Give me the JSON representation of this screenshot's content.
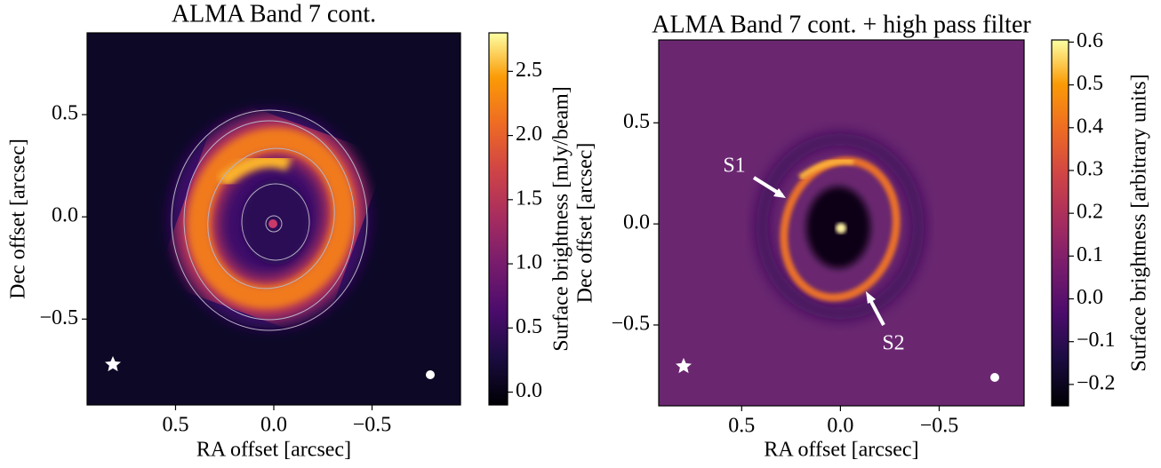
{
  "chart_data": [
    {
      "type": "image",
      "title": "ALMA Band 7 cont.",
      "xlabel": "RA offset [arcsec]",
      "ylabel": "Dec offset [arcsec]",
      "xlim": [
        0.95,
        -0.95
      ],
      "ylim": [
        -0.92,
        0.9
      ],
      "xticks": [
        0.5,
        {
          "value": 0,
          "label": "0.0"
        },
        {
          "value": -0.5,
          "label": "−0.5"
        }
      ],
      "yticks": [
        {
          "value": -0.5,
          "label": "−0.5"
        },
        {
          "value": 0,
          "label": "0.0"
        },
        0.5
      ],
      "colormap": "inferno",
      "colorbar_label": "Surface brightness [mJy/beam]",
      "clim": [
        -0.1,
        2.8
      ],
      "cticks": [
        {
          "value": 0,
          "label": "0.0"
        },
        0.5,
        {
          "value": 1,
          "label": "1.0"
        },
        1.5,
        {
          "value": 2,
          "label": "2.0"
        },
        2.5
      ]
    },
    {
      "type": "image",
      "title": "ALMA Band 7 cont. + high pass filter",
      "xlabel": "RA offset [arcsec]",
      "ylabel": "Dec offset [arcsec]",
      "xlim": [
        0.92,
        -0.93
      ],
      "ylim": [
        -0.9,
        0.91
      ],
      "xticks": [
        0.5,
        {
          "value": 0,
          "label": "0.0"
        },
        {
          "value": -0.5,
          "label": "−0.5"
        }
      ],
      "yticks": [
        {
          "value": -0.5,
          "label": "−0.5"
        },
        {
          "value": 0,
          "label": "0.0"
        },
        0.5
      ],
      "colormap": "inferno",
      "colorbar_label": "Surface brightness [arbitrary units]",
      "clim": [
        -0.25,
        0.605
      ],
      "cticks": [
        {
          "value": -0.2,
          "label": "−0.2"
        },
        {
          "value": -0.1,
          "label": "−0.1"
        },
        {
          "value": 0,
          "label": "0.0"
        },
        0.1,
        0.2,
        0.3,
        0.4,
        0.5,
        0.6
      ],
      "annotations": [
        "S1",
        "S2"
      ]
    }
  ]
}
